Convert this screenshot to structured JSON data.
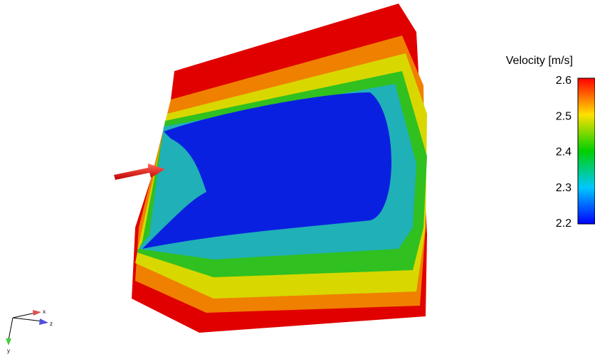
{
  "colorbar": {
    "title": "Velocity [m/s]",
    "ticks": [
      2.6,
      2.5,
      2.4,
      2.3,
      2.2
    ]
  },
  "axes": {
    "x": "x",
    "z": "z",
    "y": "y"
  }
}
